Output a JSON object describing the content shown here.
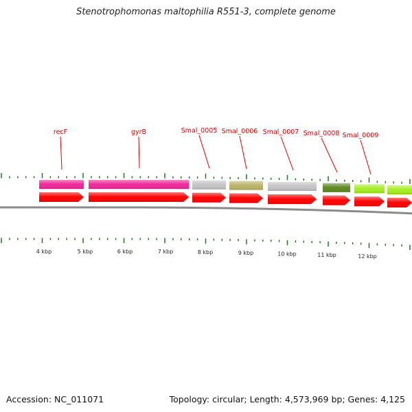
{
  "title": "Stenotrophomonas maltophilia R551-3, complete genome",
  "footer": {
    "accession": "Accession: NC_011071",
    "summary": "Topology: circular; Length: 4,573,969 bp; Genes: 4,125"
  },
  "colors": {
    "label_red": "#e00000",
    "tick_green": "#1a7a1a",
    "backbone": "#8a8a8a",
    "cds_red": "#ff0000",
    "gene_magenta": "#f0289a",
    "gene_gray": "#c4c4c4",
    "gene_khaki": "#bcb46a",
    "gene_olive": "#5e8a1e",
    "gene_lime": "#a6ee22"
  },
  "kbp_labels": [
    "4 kbp",
    "5 kbp",
    "6 kbp",
    "7 kbp",
    "8 kbp",
    "9 kbp",
    "10 kbp",
    "11 kbp",
    "12 kbp"
  ],
  "genes": [
    {
      "label": "recF",
      "color": "gene_magenta"
    },
    {
      "label": "gyrB",
      "color": "gene_magenta"
    },
    {
      "label": "Smal_0005",
      "color": "gene_gray"
    },
    {
      "label": "Smal_0006",
      "color": "gene_khaki"
    },
    {
      "label": "Smal_0007",
      "color": "gene_gray"
    },
    {
      "label": "Smal_0008",
      "color": "gene_olive"
    },
    {
      "label": "Smal_0009",
      "color": "gene_lime"
    },
    {
      "label": "",
      "color": "gene_lime"
    }
  ]
}
